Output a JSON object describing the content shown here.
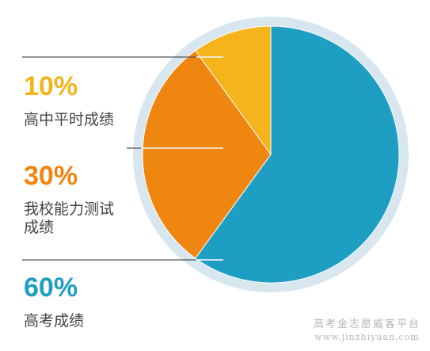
{
  "chart_data": {
    "type": "pie",
    "slices": [
      {
        "label": "高中平时成绩",
        "value": 10,
        "value_label": "10%",
        "color": "#f5b31c"
      },
      {
        "label": "我校能力测试\n成绩",
        "value": 30,
        "value_label": "30%",
        "color": "#ef860f"
      },
      {
        "label": "高考成绩",
        "value": 60,
        "value_label": "60%",
        "color": "#1f9ec4"
      }
    ],
    "ring_color": "#d8e6ef",
    "start": "12 o'clock, counter-clockwise order from the top: 10%, 30%, then 60% clockwise from the top"
  },
  "watermark": {
    "line1": "高考金志愿威客平台",
    "line2": "www.jinzhiyuan.com"
  }
}
